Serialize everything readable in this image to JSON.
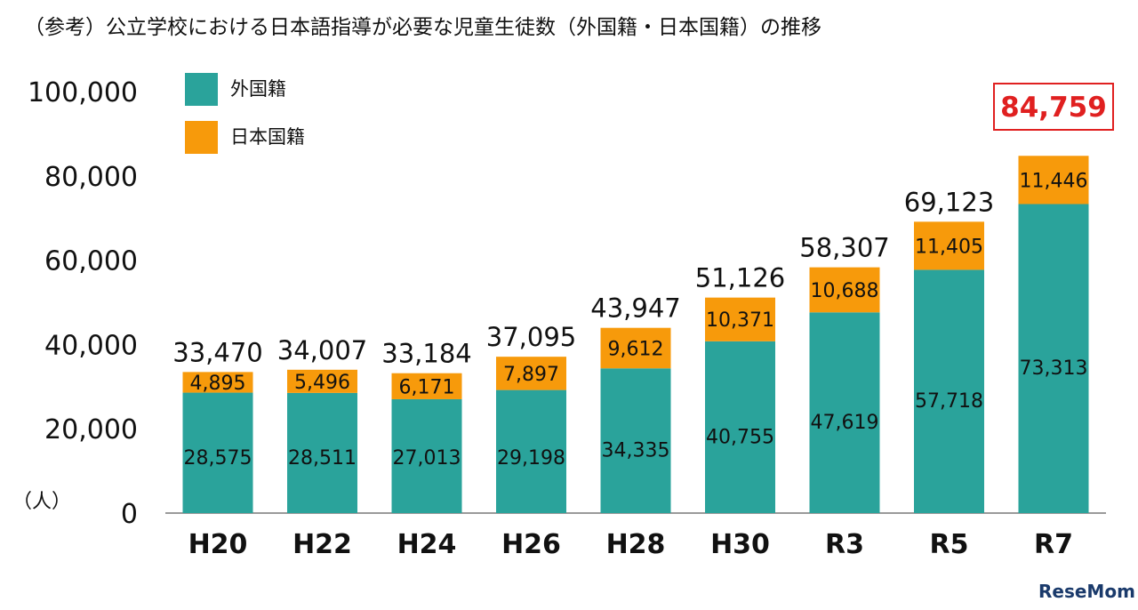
{
  "chart_data": {
    "type": "bar",
    "stacked": true,
    "title": "（参考）公立学校における日本語指導が必要な児童生徒数（外国籍・日本国籍）の推移",
    "unit_label": "（人）",
    "categories": [
      "H20",
      "H22",
      "H24",
      "H26",
      "H28",
      "H30",
      "R3",
      "R5",
      "R7"
    ],
    "series": [
      {
        "name": "外国籍",
        "color": "#2aa39b",
        "values": [
          28575,
          28511,
          27013,
          29198,
          34335,
          40755,
          47619,
          57718,
          73313
        ]
      },
      {
        "name": "日本国籍",
        "color": "#f79a0b",
        "values": [
          4895,
          5496,
          6171,
          7897,
          9612,
          10371,
          10688,
          11405,
          11446
        ]
      }
    ],
    "totals": [
      33470,
      34007,
      33184,
      37095,
      43947,
      51126,
      58307,
      69123,
      84759
    ],
    "highlight_total_index": 8,
    "highlight_color": "#e02020",
    "ylim": [
      0,
      100000
    ],
    "yticks": [
      0,
      20000,
      40000,
      60000,
      80000,
      100000
    ],
    "legend_position": "top-left",
    "grid": false
  },
  "watermark": "ReseMom"
}
